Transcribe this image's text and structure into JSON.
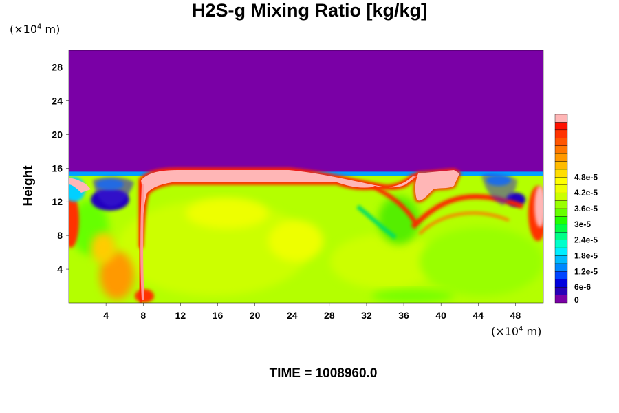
{
  "title": "H2S-g Mixing Ratio [kg/kg]",
  "y_unit": {
    "prefix": "(×10",
    "exp": "4",
    "suffix": " m)"
  },
  "x_unit": {
    "prefix": "(×10",
    "exp": "4",
    "suffix": " m)"
  },
  "time_label": "TIME = 1008960.0",
  "colors": {
    "background_top": "#7a00a6",
    "main_field": "#b4ff00",
    "plume": "#ffb6b6"
  },
  "chart_data": {
    "type": "heatmap",
    "title": "H2S-g Mixing Ratio [kg/kg]",
    "ylabel": "Height",
    "xlabel": "",
    "xlim": [
      0,
      51
    ],
    "ylim": [
      0,
      30
    ],
    "x_ticks": [
      4,
      8,
      12,
      16,
      20,
      24,
      28,
      32,
      36,
      40,
      44,
      48
    ],
    "y_ticks": [
      4,
      8,
      12,
      16,
      20,
      24,
      28
    ],
    "colorbar": {
      "labels": [
        "0",
        "6e-6",
        "1.2e-5",
        "1.8e-5",
        "2.4e-5",
        "3e-5",
        "3.6e-5",
        "4.2e-5",
        "4.8e-5"
      ],
      "colors": [
        "#7a00a6",
        "#2800b8",
        "#0000dd",
        "#0044ff",
        "#0088ff",
        "#00bbff",
        "#00eeff",
        "#00ffcc",
        "#00ff88",
        "#00ff44",
        "#22ff00",
        "#66ff00",
        "#99ff00",
        "#ccff00",
        "#eeff00",
        "#ffff00",
        "#ffdd00",
        "#ffbb00",
        "#ff9900",
        "#ff7700",
        "#ff5500",
        "#ff3300",
        "#ff1100",
        "#ffb6b6"
      ],
      "max_label": "4.8e-5"
    },
    "field": {
      "top_value": "0",
      "lower_value_approx": "3.3e-5",
      "boundary_height": 15.5
    }
  }
}
